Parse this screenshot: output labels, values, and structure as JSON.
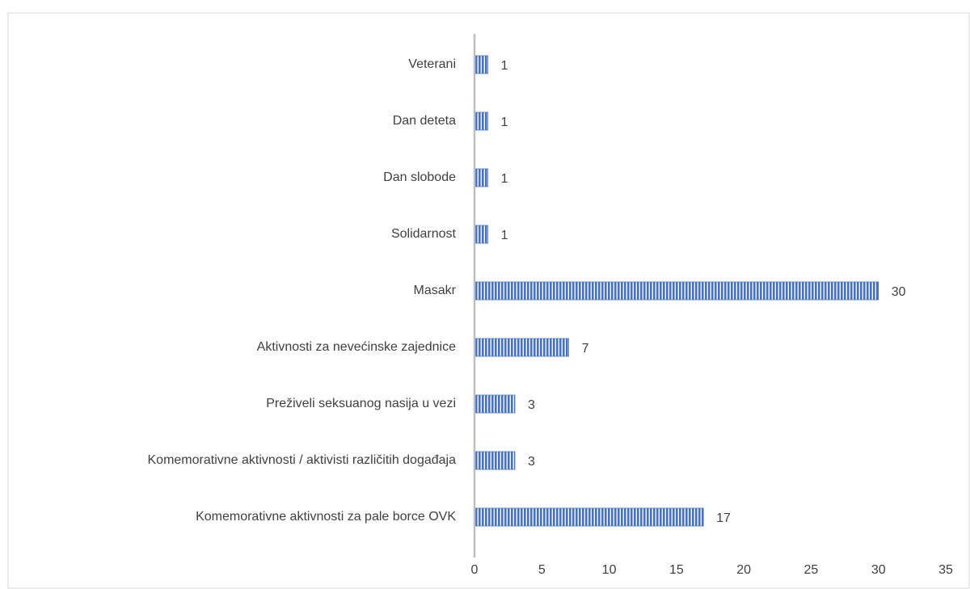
{
  "chart_data": {
    "type": "hbar",
    "categories": [
      "Veterani",
      "Dan deteta",
      "Dan slobode",
      "Solidarnost",
      "Masakr",
      "Aktivnosti za nevećinske zajednice",
      "Preživeli seksuanog nasija u vezi ",
      "Komemorativne aktivnosti / aktivisti različitih događaja",
      "Komemorativne aktivnosti za pale borce OVK"
    ],
    "values": [
      1,
      1,
      1,
      1,
      30,
      7,
      3,
      3,
      17
    ],
    "color": "#4472c4",
    "xlim": [
      0,
      35
    ],
    "xticks": [
      0,
      5,
      10,
      15,
      20,
      25,
      30,
      35
    ],
    "grid": false
  }
}
